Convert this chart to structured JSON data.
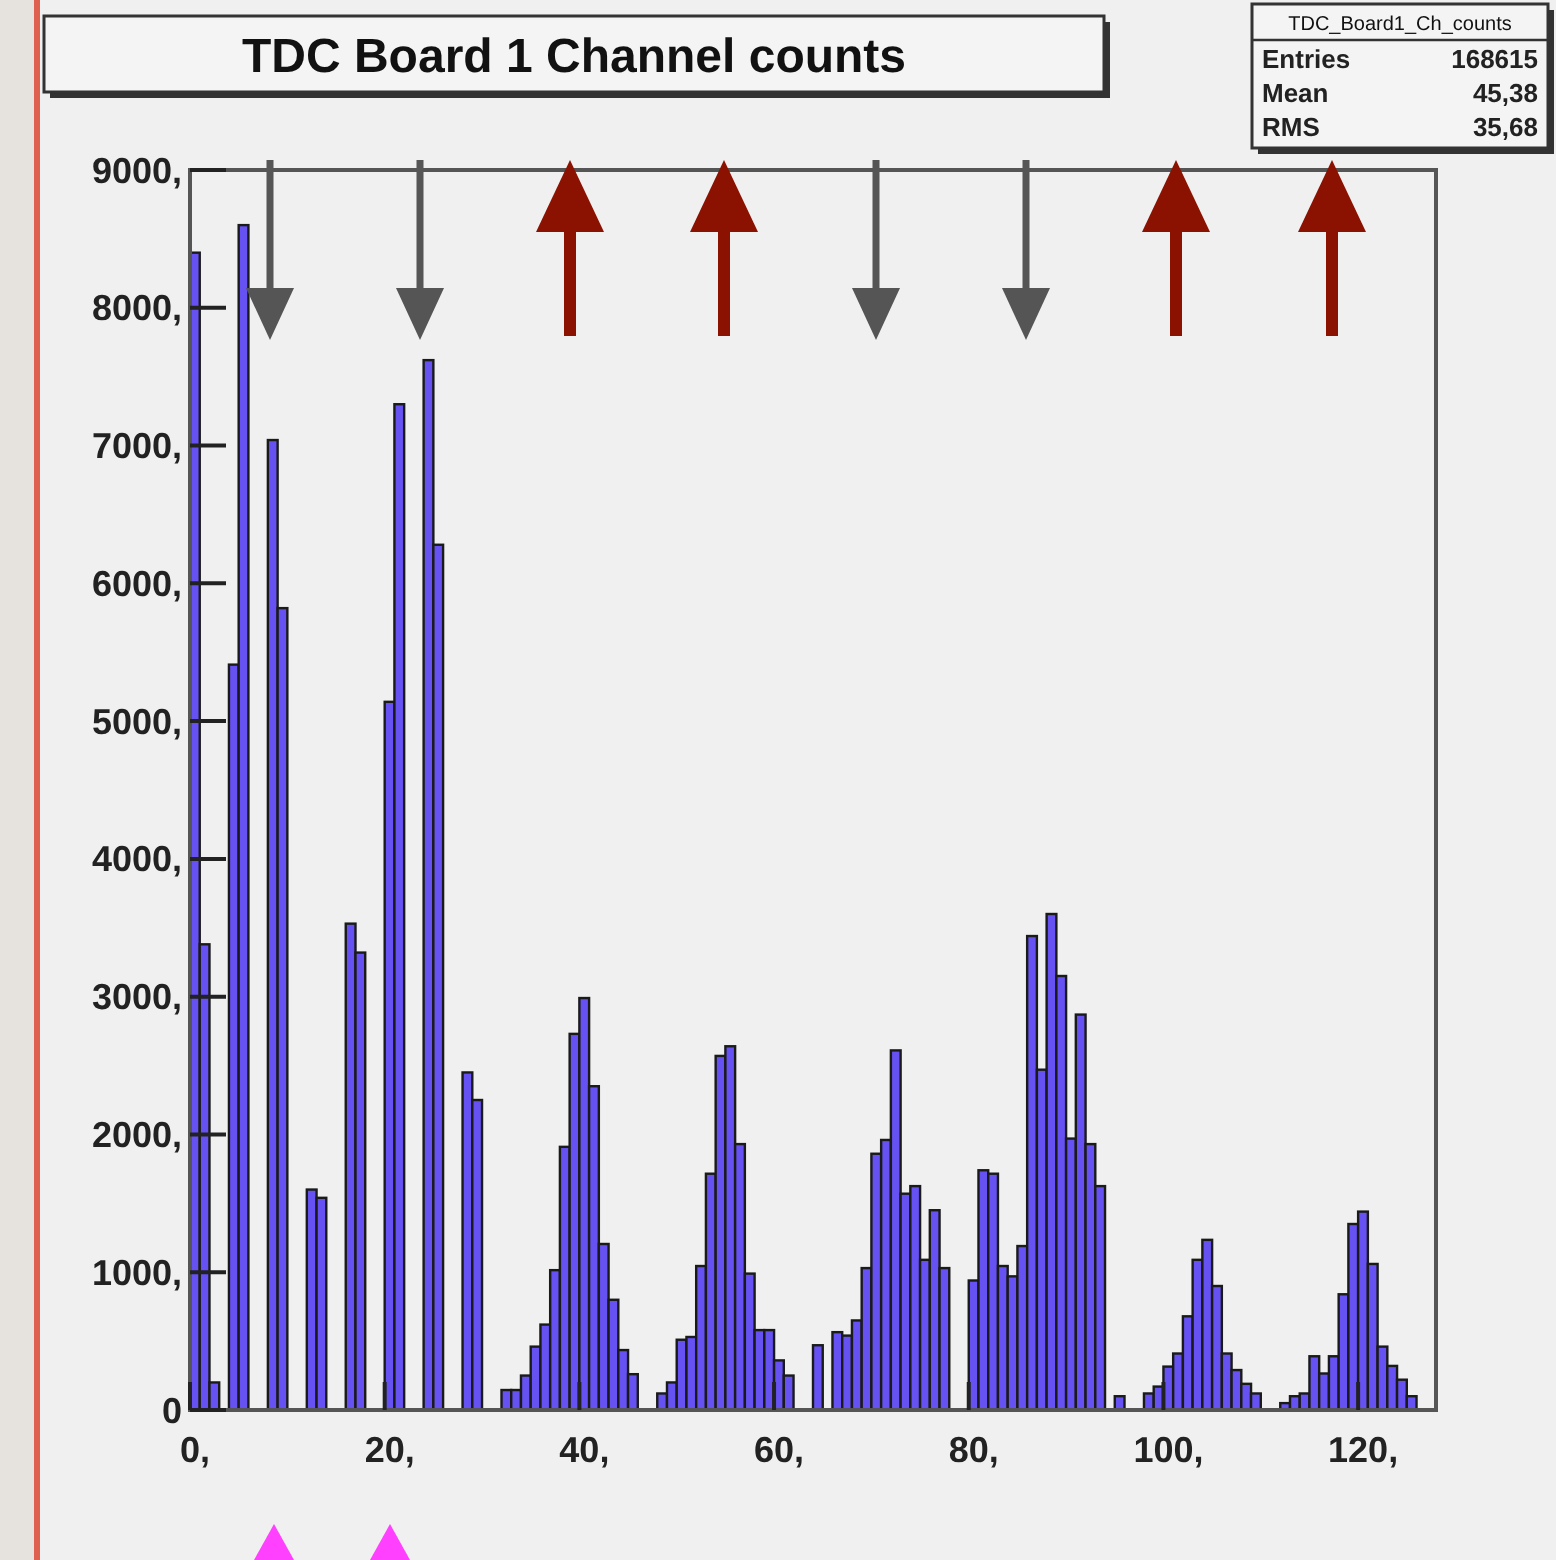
{
  "chart_data": {
    "type": "histogram",
    "title": "TDC Board 1 Channel counts",
    "annotations": [
      "TDC_Board1_Ch_counts",
      "Entries 168615",
      "Mean 45,38",
      "RMS 35,68"
    ],
    "bins": [
      0,
      1,
      2,
      3,
      4,
      5,
      6,
      7,
      8,
      9,
      10,
      11,
      12,
      13,
      14,
      15,
      16,
      17,
      18,
      19,
      20,
      21,
      22,
      23,
      24,
      25,
      26,
      27,
      28,
      29,
      30,
      31,
      32,
      33,
      34,
      35,
      36,
      37,
      38,
      39,
      40,
      41,
      42,
      43,
      44,
      45,
      46,
      47,
      48,
      49,
      50,
      51,
      52,
      53,
      54,
      55,
      56,
      57,
      58,
      59,
      60,
      61,
      62,
      63,
      64,
      65,
      66,
      67,
      68,
      69,
      70,
      71,
      72,
      73,
      74,
      75,
      76,
      77,
      78,
      79,
      80,
      81,
      82,
      83,
      84,
      85,
      86,
      87,
      88,
      89,
      90,
      91,
      92,
      93,
      94,
      95,
      96,
      97,
      98,
      99,
      100,
      101,
      102,
      103,
      104,
      105,
      106,
      107,
      108,
      109,
      110,
      111,
      112,
      113,
      114,
      115,
      116,
      117,
      118,
      119,
      120,
      121,
      122,
      123,
      124,
      125,
      126,
      127,
      128
    ],
    "values": [
      8400,
      3380,
      200,
      0,
      5410,
      8600,
      0,
      0,
      7040,
      5820,
      0,
      0,
      1600,
      1540,
      0,
      0,
      3530,
      3320,
      0,
      0,
      5140,
      7300,
      0,
      0,
      7620,
      6280,
      0,
      0,
      2450,
      2250,
      0,
      0,
      145,
      145,
      250,
      460,
      620,
      1015,
      1910,
      2730,
      2990,
      2350,
      1205,
      800,
      435,
      260,
      0,
      0,
      120,
      200,
      510,
      530,
      1045,
      1715,
      2570,
      2640,
      1930,
      990,
      580,
      580,
      360,
      250,
      0,
      0,
      470,
      0,
      565,
      540,
      650,
      1030,
      1860,
      1960,
      2610,
      1570,
      1625,
      1090,
      1450,
      1030,
      0,
      0,
      940,
      1740,
      1715,
      1045,
      970,
      1190,
      3440,
      2470,
      3600,
      3150,
      1970,
      2870,
      1930,
      1625,
      0,
      100,
      0,
      0,
      120,
      170,
      315,
      410,
      680,
      1090,
      1235,
      900,
      410,
      290,
      190,
      120,
      0,
      0,
      50,
      100,
      120,
      390,
      265,
      390,
      840,
      1350,
      1440,
      1060,
      460,
      320,
      220,
      100,
      0,
      0
    ],
    "color": "#6652f2",
    "xlim": [
      0,
      128
    ],
    "xticks": [
      {
        "value": 0,
        "label": "0,"
      },
      {
        "value": 20,
        "label": "20,"
      },
      {
        "value": 40,
        "label": "40,"
      },
      {
        "value": 60,
        "label": "60,"
      },
      {
        "value": 80,
        "label": "80,"
      },
      {
        "value": 100,
        "label": "100,"
      },
      {
        "value": 120,
        "label": "120,"
      }
    ],
    "ylim": [
      0,
      9000
    ],
    "yticks": [
      0,
      {
        "value": 1000,
        "label": "1000,"
      },
      {
        "value": 2000,
        "label": "2000,"
      },
      {
        "value": 3000,
        "label": "3000,"
      },
      {
        "value": 4000,
        "label": "4000,"
      },
      {
        "value": 5000,
        "label": "5000,"
      },
      {
        "value": 6000,
        "label": "6000,"
      },
      {
        "value": 7000,
        "label": "7000,"
      },
      {
        "value": 8000,
        "label": "8000,"
      },
      {
        "value": 9000,
        "label": "9000,"
      }
    ]
  }
}
